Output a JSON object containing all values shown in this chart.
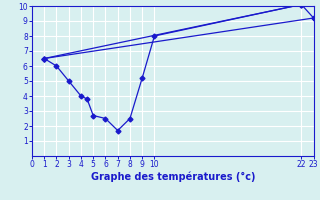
{
  "line1_x": [
    1,
    22
  ],
  "line1_y": [
    6.5,
    10.1
  ],
  "line2_x": [
    1,
    23
  ],
  "line2_y": [
    6.5,
    9.2
  ],
  "line3_x": [
    1,
    2,
    3,
    4,
    4.5,
    5,
    6,
    7,
    8,
    9,
    10,
    22,
    23
  ],
  "line3_y": [
    6.5,
    6.0,
    5.0,
    4.0,
    3.8,
    2.7,
    2.5,
    1.7,
    2.5,
    5.2,
    8.0,
    10.1,
    9.2
  ],
  "line_color": "#1a1acc",
  "bg_color": "#d8f0f0",
  "xlabel": "Graphe des températures (°c)",
  "xlim": [
    0,
    23
  ],
  "ylim": [
    0,
    10
  ],
  "xticks": [
    0,
    1,
    2,
    3,
    4,
    5,
    6,
    7,
    8,
    9,
    10,
    22,
    23
  ],
  "yticks": [
    1,
    2,
    3,
    4,
    5,
    6,
    7,
    8,
    9,
    10
  ],
  "grid_color": "#ffffff",
  "marker": "D",
  "markersize": 2.5,
  "linewidth": 0.9
}
